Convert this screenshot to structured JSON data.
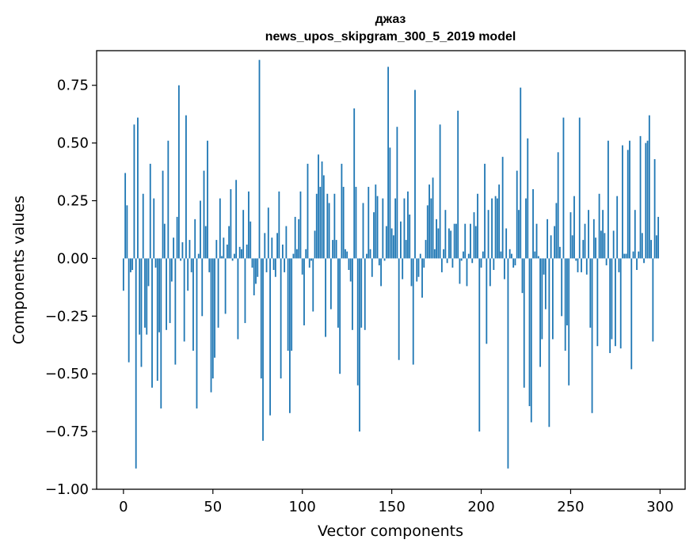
{
  "chart_data": {
    "type": "bar",
    "title_lines": [
      "джаз",
      "news_upos_skipgram_300_5_2019 model"
    ],
    "xlabel": "Vector components",
    "ylabel": "Components values",
    "xlim": [
      -15,
      314
    ],
    "ylim": [
      -1.0,
      0.9
    ],
    "xticks": [
      0,
      50,
      100,
      150,
      200,
      250,
      300
    ],
    "xtick_labels": [
      "0",
      "50",
      "100",
      "150",
      "200",
      "250",
      "300"
    ],
    "yticks": [
      -1.0,
      -0.75,
      -0.5,
      -0.25,
      0.0,
      0.25,
      0.5,
      0.75
    ],
    "ytick_labels": [
      "−1.00",
      "−0.75",
      "−0.50",
      "−0.25",
      "0.00",
      "0.25",
      "0.50",
      "0.75"
    ],
    "bar_color": "#1f77b4",
    "grid": false,
    "values": [
      -0.14,
      0.37,
      0.23,
      -0.45,
      -0.06,
      -0.05,
      0.58,
      -0.91,
      0.61,
      -0.33,
      -0.47,
      0.28,
      -0.3,
      -0.33,
      -0.12,
      0.41,
      -0.56,
      0.26,
      -0.04,
      -0.53,
      -0.32,
      -0.65,
      0.38,
      0.15,
      -0.31,
      0.51,
      -0.28,
      -0.1,
      0.09,
      -0.46,
      0.18,
      0.75,
      -0.01,
      0.07,
      -0.36,
      0.62,
      -0.14,
      0.08,
      -0.06,
      -0.4,
      0.17,
      -0.65,
      0.02,
      0.25,
      -0.25,
      0.38,
      0.14,
      0.51,
      -0.06,
      -0.58,
      -0.52,
      -0.43,
      0.08,
      -0.3,
      0.26,
      0.01,
      0.09,
      -0.24,
      0.06,
      0.14,
      0.3,
      -0.01,
      0.02,
      0.34,
      -0.35,
      0.05,
      0.04,
      0.21,
      -0.28,
      0.06,
      0.29,
      0.16,
      -0.04,
      -0.16,
      -0.11,
      -0.08,
      0.86,
      -0.52,
      -0.79,
      0.11,
      -0.06,
      0.22,
      -0.68,
      0.09,
      -0.05,
      -0.08,
      0.11,
      0.29,
      -0.52,
      0.06,
      -0.06,
      0.14,
      -0.4,
      -0.67,
      -0.4,
      0.02,
      0.18,
      0.04,
      0.17,
      0.29,
      -0.07,
      -0.29,
      0.04,
      0.41,
      -0.04,
      -0.01,
      -0.23,
      0.12,
      0.28,
      0.45,
      0.31,
      0.42,
      0.36,
      -0.34,
      0.28,
      0.24,
      -0.22,
      0.08,
      0.28,
      0.08,
      -0.3,
      -0.5,
      0.41,
      0.31,
      0.04,
      0.03,
      -0.05,
      -0.1,
      -0.31,
      0.65,
      0.31,
      -0.55,
      -0.75,
      -0.3,
      0.24,
      -0.31,
      0.02,
      0.31,
      0.04,
      -0.08,
      0.2,
      0.32,
      0.27,
      -0.03,
      -0.12,
      0.26,
      -0.01,
      0.14,
      0.83,
      0.48,
      0.13,
      0.1,
      0.26,
      0.57,
      -0.44,
      0.16,
      -0.09,
      0.26,
      0.08,
      0.29,
      0.19,
      -0.12,
      -0.46,
      0.73,
      -0.1,
      -0.08,
      0.02,
      -0.17,
      -0.04,
      0.08,
      0.23,
      0.32,
      0.26,
      0.35,
      0.04,
      0.17,
      0.13,
      0.58,
      -0.06,
      0.04,
      0.21,
      -0.02,
      0.13,
      0.12,
      -0.04,
      0.15,
      0.15,
      0.64,
      -0.11,
      -0.01,
      0.03,
      0.15,
      -0.12,
      0.02,
      0.15,
      -0.02,
      0.2,
      0.14,
      0.28,
      -0.75,
      -0.04,
      0.03,
      0.41,
      -0.37,
      0.21,
      -0.12,
      0.26,
      -0.05,
      0.27,
      0.26,
      0.32,
      0.03,
      0.44,
      -0.09,
      0.13,
      -0.91,
      0.04,
      0.02,
      -0.04,
      -0.03,
      0.38,
      0.21,
      0.74,
      -0.15,
      -0.56,
      0.26,
      0.52,
      -0.64,
      -0.71,
      0.3,
      0.03,
      0.15,
      0.01,
      -0.47,
      -0.35,
      -0.07,
      -0.22,
      0.17,
      -0.73,
      0.1,
      -0.35,
      0.14,
      0.24,
      0.46,
      0.05,
      -0.25,
      0.61,
      -0.4,
      -0.29,
      -0.55,
      0.2,
      0.1,
      0.27,
      -0.01,
      -0.06,
      0.61,
      -0.06,
      0.08,
      0.15,
      -0.07,
      0.21,
      -0.3,
      -0.67,
      0.17,
      0.09,
      -0.38,
      0.28,
      0.12,
      0.21,
      0.11,
      -0.03,
      0.51,
      -0.41,
      -0.35,
      0.12,
      -0.38,
      0.27,
      -0.06,
      -0.39,
      0.49,
      0.02,
      0.02,
      0.47,
      0.51,
      -0.48,
      0.03,
      0.21,
      -0.05,
      0.03,
      0.53,
      0.11,
      -0.02,
      0.5,
      0.51,
      0.62,
      0.08,
      -0.36,
      0.43,
      0.1,
      0.18
    ]
  }
}
